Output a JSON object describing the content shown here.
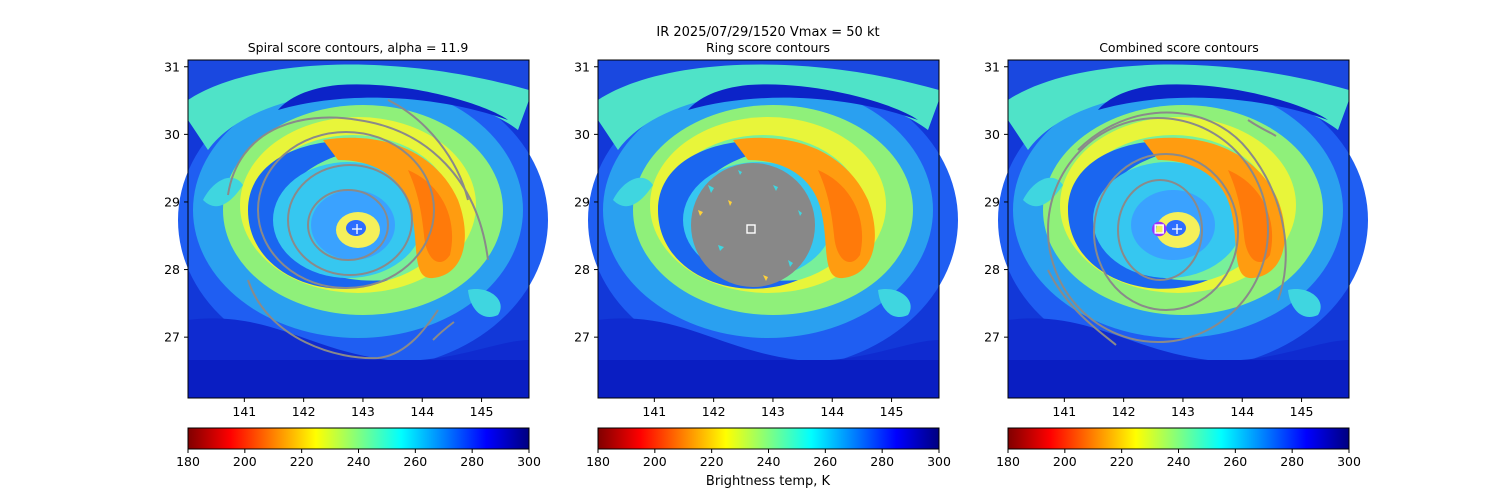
{
  "figure": {
    "suptitle_line1": "IR  2025/07/29/1520    Vmax = 50 kt",
    "colorbar_label": "Brightness temp, K"
  },
  "colorbar": {
    "ticks": [
      "180",
      "200",
      "220",
      "240",
      "260",
      "280",
      "300"
    ],
    "range": [
      180,
      300
    ],
    "colormap": "jet_r",
    "colors": [
      "#800000",
      "#ff0000",
      "#ff8000",
      "#ffff00",
      "#80ff80",
      "#00ffff",
      "#0080ff",
      "#0000ff",
      "#000080"
    ]
  },
  "chart_data": [
    {
      "type": "heatmap",
      "title": "Spiral score contours, alpha = 11.9",
      "xlabel": "",
      "ylabel": "",
      "xlim": [
        140.05,
        145.8
      ],
      "ylim": [
        26.1,
        31.1
      ],
      "xticks": [
        "141",
        "142",
        "143",
        "144",
        "145"
      ],
      "yticks": [
        "27",
        "28",
        "29",
        "30",
        "31"
      ],
      "markers": [
        {
          "shape": "plus",
          "lon": 142.9,
          "lat": 28.6,
          "color": "#ffffff"
        }
      ],
      "overlay": "spiral score contours (gray)"
    },
    {
      "type": "heatmap",
      "title": "Ring score contours",
      "xlabel": "",
      "ylabel": "",
      "xlim": [
        140.05,
        145.8
      ],
      "ylim": [
        26.1,
        31.1
      ],
      "xticks": [
        "141",
        "142",
        "143",
        "144",
        "145"
      ],
      "yticks": [
        "27",
        "28",
        "29",
        "30",
        "31"
      ],
      "markers": [
        {
          "shape": "square",
          "lon": 142.63,
          "lat": 28.6,
          "color": "#ffffff"
        }
      ],
      "overlay": "ring score mask (gray disk)"
    },
    {
      "type": "heatmap",
      "title": "Combined score contours",
      "xlabel": "",
      "ylabel": "",
      "xlim": [
        140.05,
        145.8
      ],
      "ylim": [
        26.1,
        31.1
      ],
      "xticks": [
        "141",
        "142",
        "143",
        "144",
        "145"
      ],
      "yticks": [
        "27",
        "28",
        "29",
        "30",
        "31"
      ],
      "markers": [
        {
          "shape": "circle",
          "lon": 142.6,
          "lat": 28.6,
          "color": "#9933ff"
        },
        {
          "shape": "square",
          "lon": 142.6,
          "lat": 28.6,
          "color": "#ffffff"
        },
        {
          "shape": "plus",
          "lon": 142.9,
          "lat": 28.6,
          "color": "#ffffff"
        }
      ],
      "overlay": "combined score contours (gray)"
    }
  ]
}
